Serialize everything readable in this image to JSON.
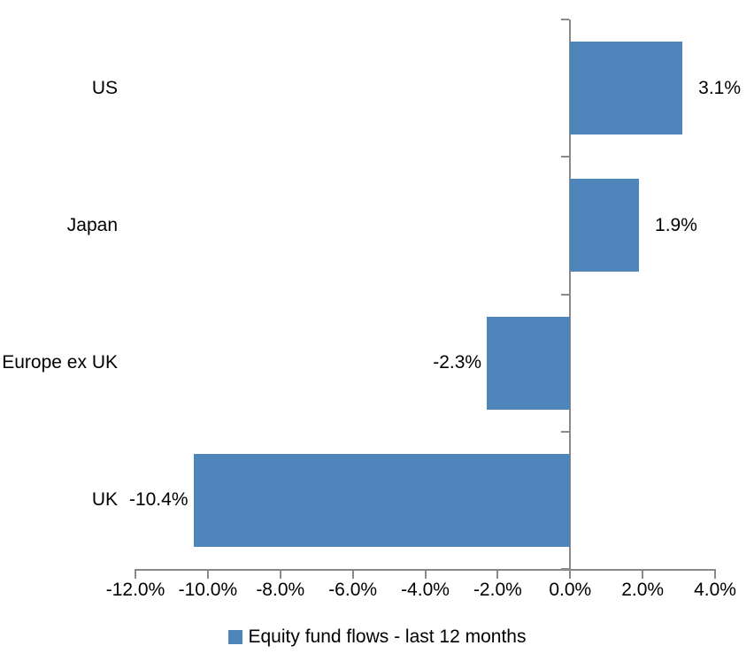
{
  "chart_data": {
    "type": "bar",
    "orientation": "horizontal",
    "title": "",
    "categories": [
      "US",
      "Japan",
      "Europe ex UK",
      "UK"
    ],
    "values": [
      3.1,
      1.9,
      -2.3,
      -10.4
    ],
    "value_labels": [
      "3.1%",
      "1.9%",
      "-2.3%",
      "-10.4%"
    ],
    "series_name": "Equity fund flows - last 12 months",
    "xlim": [
      -12,
      4
    ],
    "xticks": [
      -12,
      -10,
      -8,
      -6,
      -4,
      -2,
      0,
      2,
      4
    ],
    "xtick_labels": [
      "-12.0%",
      "-10.0%",
      "-8.0%",
      "-6.0%",
      "-4.0%",
      "-2.0%",
      "0.0%",
      "2.0%",
      "4.0%"
    ],
    "grid": false,
    "legend_position": "bottom",
    "bar_color": "#4E86BB",
    "axis_color": "#898989",
    "text_color": "#000000"
  },
  "legend": {
    "label": "Equity fund flows - last 12 months",
    "swatch_color": "#4E86BB"
  }
}
